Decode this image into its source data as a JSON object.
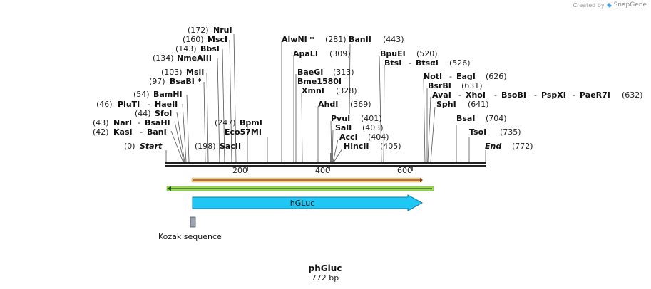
{
  "credit": {
    "prefix": "Created by",
    "brand": "SnapGene"
  },
  "plasmid": {
    "name": "phGluc",
    "length_label": "772 bp",
    "length": 772
  },
  "ends": {
    "start": {
      "pos": "(0)",
      "label": "Start"
    },
    "end": {
      "label": "End",
      "pos": "(772)"
    }
  },
  "ruler": {
    "ticks": [
      "200",
      "400",
      "600"
    ]
  },
  "sites": [
    {
      "name": "NruI",
      "pos": "(172)",
      "bp": 172
    },
    {
      "name": "MscI",
      "pos": "(160)",
      "bp": 160
    },
    {
      "name": "BbsI",
      "pos": "(143)",
      "bp": 143
    },
    {
      "name": "NmeAIII",
      "pos": "(134)",
      "bp": 134
    },
    {
      "name": "MslI",
      "pos": "(103)",
      "bp": 103
    },
    {
      "name": "BsaBI *",
      "pos": "(97)",
      "bp": 97
    },
    {
      "name": "BamHI",
      "pos": "(54)",
      "bp": 54
    },
    {
      "name": "PluTI",
      "pos": "(46)",
      "extra": "HaeII",
      "bp": 46
    },
    {
      "name": "SfoI",
      "pos": "(44)",
      "bp": 44
    },
    {
      "name": "NarI",
      "pos": "(43)",
      "extra": "BsaHI",
      "bp": 43
    },
    {
      "name": "KasI",
      "pos": "(42)",
      "extra": "BanI",
      "bp": 42
    },
    {
      "name": "BpmI",
      "pos": "(247)",
      "bp": 247
    },
    {
      "name": "Eco57MI",
      "pos": "",
      "bp": 247
    },
    {
      "name": "SacII",
      "pos": "(198)",
      "bp": 198
    },
    {
      "name": "AlwNI *",
      "pos": "(281)",
      "bp": 281
    },
    {
      "name": "BanII",
      "pos": "(443)",
      "bp": 443
    },
    {
      "name": "ApaLI",
      "pos": "(309)",
      "bp": 309
    },
    {
      "name": "BaeGI",
      "pos": "(313)",
      "bp": 313
    },
    {
      "name": "Bme1580I",
      "pos": "",
      "bp": 313
    },
    {
      "name": "XmnI",
      "pos": "(328)",
      "bp": 328
    },
    {
      "name": "AhdI",
      "pos": "(369)",
      "bp": 369
    },
    {
      "name": "PvuI",
      "pos": "(401)",
      "bp": 401
    },
    {
      "name": "SalI",
      "pos": "(403)",
      "bp": 403
    },
    {
      "name": "AccI",
      "pos": "(404)",
      "bp": 404
    },
    {
      "name": "HincII",
      "pos": "(405)",
      "bp": 405
    },
    {
      "name": "BpuEI",
      "pos": "(520)",
      "bp": 520
    },
    {
      "name": "BtsI",
      "pos": "(526)",
      "extra": "BtsαI",
      "bp": 526
    },
    {
      "name": "NotI",
      "pos": "(626)",
      "extra": "EagI",
      "bp": 626
    },
    {
      "name": "BsrBI",
      "pos": "(631)",
      "bp": 631
    },
    {
      "name": "AvaI",
      "pos": "(632)",
      "extra": "XhoI",
      "extra2": "BsoBI",
      "extra3": "PspXI",
      "extra4": "PaeR7I",
      "bp": 632
    },
    {
      "name": "SphI",
      "pos": "(641)",
      "bp": 641
    },
    {
      "name": "BsaI",
      "pos": "(704)",
      "bp": 704
    },
    {
      "name": "TsoI",
      "pos": "(735)",
      "bp": 735
    }
  ],
  "features": {
    "gene": {
      "label": "hGLuc",
      "color": "#1fc8f4"
    },
    "kozak": {
      "label": "Kozak sequence",
      "color": "#9aa3b2"
    },
    "orange_arrow_color": "#f0c070",
    "green_arrow_color": "#7ecb3a"
  }
}
